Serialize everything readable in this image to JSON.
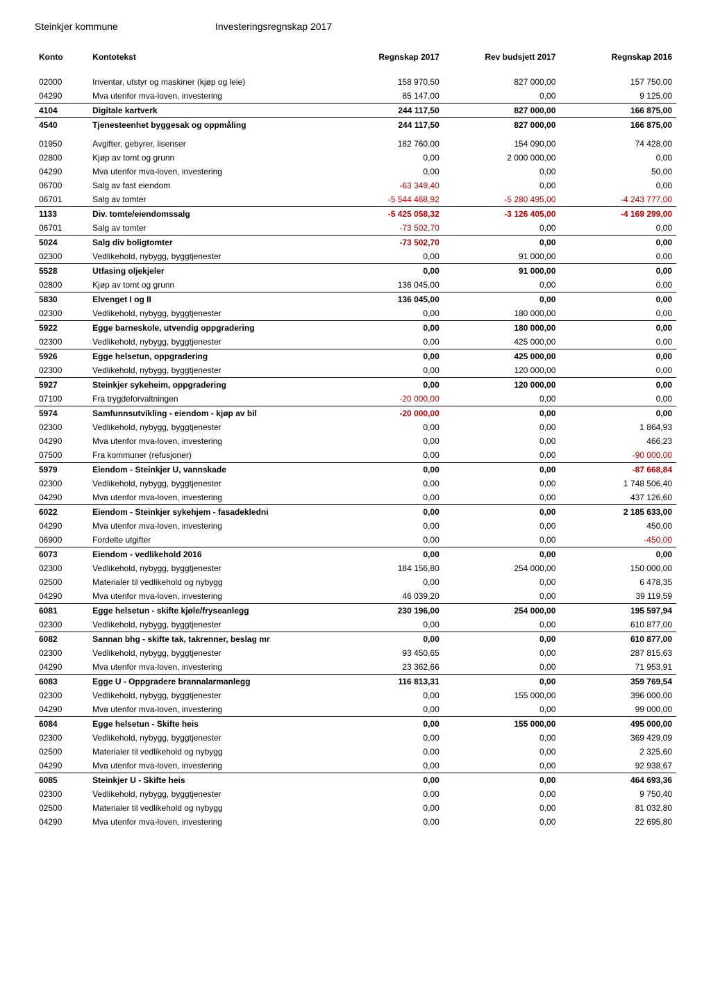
{
  "header": {
    "org": "Steinkjer kommune",
    "title": "Investeringsregnskap 2017"
  },
  "columns": {
    "konto": "Konto",
    "tekst": "Kontotekst",
    "c1": "Regnskap 2017",
    "c2": "Rev budsjett 2017",
    "c3": "Regnskap 2016"
  },
  "rows": [
    {
      "konto": "02000",
      "tekst": "Inventar, utstyr og maskiner (kjøp og leie)",
      "c1": "158 970,50",
      "c2": "827 000,00",
      "c3": "157 750,00",
      "spacer": true
    },
    {
      "konto": "04290",
      "tekst": "Mva utenfor mva-loven, investering",
      "c1": "85 147,00",
      "c2": "0,00",
      "c3": "9 125,00"
    },
    {
      "konto": "4104",
      "tekst": "Digitale kartverk",
      "c1": "244 117,50",
      "c2": "827 000,00",
      "c3": "166 875,00",
      "bold": true,
      "line": true
    },
    {
      "konto": "4540",
      "tekst": "Tjenesteenhet byggesak og oppmåling",
      "c1": "244 117,50",
      "c2": "827 000,00",
      "c3": "166 875,00",
      "bold": true,
      "line": true
    },
    {
      "konto": "01950",
      "tekst": "Avgifter, gebyrer, lisenser",
      "c1": "182 760,00",
      "c2": "154 090,00",
      "c3": "74 428,00",
      "spacer": true
    },
    {
      "konto": "02800",
      "tekst": "Kjøp av tomt og grunn",
      "c1": "0,00",
      "c2": "2 000 000,00",
      "c3": "0,00"
    },
    {
      "konto": "04290",
      "tekst": "Mva utenfor mva-loven, investering",
      "c1": "0,00",
      "c2": "0,00",
      "c3": "50,00"
    },
    {
      "konto": "06700",
      "tekst": "Salg av fast eiendom",
      "c1": "-63 349,40",
      "c2": "0,00",
      "c3": "0,00",
      "neg": [
        "c1"
      ]
    },
    {
      "konto": "06701",
      "tekst": "Salg av tomter",
      "c1": "-5 544 468,92",
      "c2": "-5 280 495,00",
      "c3": "-4 243 777,00",
      "neg": [
        "c1",
        "c2",
        "c3"
      ]
    },
    {
      "konto": "1133",
      "tekst": "Div. tomte/eiendomssalg",
      "c1": "-5 425 058,32",
      "c2": "-3 126 405,00",
      "c3": "-4 169 299,00",
      "bold": true,
      "line": true,
      "neg": [
        "c1",
        "c2",
        "c3"
      ]
    },
    {
      "konto": "06701",
      "tekst": "Salg av tomter",
      "c1": "-73 502,70",
      "c2": "0,00",
      "c3": "0,00",
      "neg": [
        "c1"
      ]
    },
    {
      "konto": "5024",
      "tekst": "Salg div boligtomter",
      "c1": "-73 502,70",
      "c2": "0,00",
      "c3": "0,00",
      "bold": true,
      "line": true,
      "neg": [
        "c1"
      ]
    },
    {
      "konto": "02300",
      "tekst": "Vedlikehold, nybygg, byggtjenester",
      "c1": "0,00",
      "c2": "91 000,00",
      "c3": "0,00"
    },
    {
      "konto": "5528",
      "tekst": "Utfasing oljekjeler",
      "c1": "0,00",
      "c2": "91 000,00",
      "c3": "0,00",
      "bold": true,
      "line": true
    },
    {
      "konto": "02800",
      "tekst": "Kjøp av tomt og grunn",
      "c1": "136 045,00",
      "c2": "0,00",
      "c3": "0,00"
    },
    {
      "konto": "5830",
      "tekst": "Elvenget I og II",
      "c1": "136 045,00",
      "c2": "0,00",
      "c3": "0,00",
      "bold": true,
      "line": true
    },
    {
      "konto": "02300",
      "tekst": "Vedlikehold, nybygg, byggtjenester",
      "c1": "0,00",
      "c2": "180 000,00",
      "c3": "0,00"
    },
    {
      "konto": "5922",
      "tekst": "Egge barneskole, utvendig oppgradering",
      "c1": "0,00",
      "c2": "180 000,00",
      "c3": "0,00",
      "bold": true,
      "line": true
    },
    {
      "konto": "02300",
      "tekst": "Vedlikehold, nybygg, byggtjenester",
      "c1": "0,00",
      "c2": "425 000,00",
      "c3": "0,00"
    },
    {
      "konto": "5926",
      "tekst": "Egge helsetun, oppgradering",
      "c1": "0,00",
      "c2": "425 000,00",
      "c3": "0,00",
      "bold": true,
      "line": true
    },
    {
      "konto": "02300",
      "tekst": "Vedlikehold, nybygg, byggtjenester",
      "c1": "0,00",
      "c2": "120 000,00",
      "c3": "0,00"
    },
    {
      "konto": "5927",
      "tekst": "Steinkjer sykeheim, oppgradering",
      "c1": "0,00",
      "c2": "120 000,00",
      "c3": "0,00",
      "bold": true,
      "line": true
    },
    {
      "konto": "07100",
      "tekst": "Fra trygdeforvaltningen",
      "c1": "-20 000,00",
      "c2": "0,00",
      "c3": "0,00",
      "neg": [
        "c1"
      ]
    },
    {
      "konto": "5974",
      "tekst": "Samfunnsutvikling - eiendom - kjøp av bil",
      "c1": "-20 000,00",
      "c2": "0,00",
      "c3": "0,00",
      "bold": true,
      "line": true,
      "neg": [
        "c1"
      ]
    },
    {
      "konto": "02300",
      "tekst": "Vedlikehold, nybygg, byggtjenester",
      "c1": "0,00",
      "c2": "0,00",
      "c3": "1 864,93"
    },
    {
      "konto": "04290",
      "tekst": "Mva utenfor mva-loven, investering",
      "c1": "0,00",
      "c2": "0,00",
      "c3": "466,23"
    },
    {
      "konto": "07500",
      "tekst": "Fra kommuner (refusjoner)",
      "c1": "0,00",
      "c2": "0,00",
      "c3": "-90 000,00",
      "neg": [
        "c3"
      ]
    },
    {
      "konto": "5979",
      "tekst": "Eiendom - Steinkjer U, vannskade",
      "c1": "0,00",
      "c2": "0,00",
      "c3": "-87 668,84",
      "bold": true,
      "line": true,
      "neg": [
        "c3"
      ]
    },
    {
      "konto": "02300",
      "tekst": "Vedlikehold, nybygg, byggtjenester",
      "c1": "0,00",
      "c2": "0,00",
      "c3": "1 748 506,40"
    },
    {
      "konto": "04290",
      "tekst": "Mva utenfor mva-loven, investering",
      "c1": "0,00",
      "c2": "0,00",
      "c3": "437 126,60"
    },
    {
      "konto": "6022",
      "tekst": "Eiendom - Steinkjer sykehjem - fasadekledni",
      "c1": "0,00",
      "c2": "0,00",
      "c3": "2 185 633,00",
      "bold": true,
      "line": true
    },
    {
      "konto": "04290",
      "tekst": "Mva utenfor mva-loven, investering",
      "c1": "0,00",
      "c2": "0,00",
      "c3": "450,00"
    },
    {
      "konto": "06900",
      "tekst": "Fordelte utgifter",
      "c1": "0,00",
      "c2": "0,00",
      "c3": "-450,00",
      "neg": [
        "c3"
      ]
    },
    {
      "konto": "6073",
      "tekst": "Eiendom - vedlikehold 2016",
      "c1": "0,00",
      "c2": "0,00",
      "c3": "0,00",
      "bold": true,
      "line": true
    },
    {
      "konto": "02300",
      "tekst": "Vedlikehold, nybygg, byggtjenester",
      "c1": "184 156,80",
      "c2": "254 000,00",
      "c3": "150 000,00"
    },
    {
      "konto": "02500",
      "tekst": "Materialer til vedlikehold og nybygg",
      "c1": "0,00",
      "c2": "0,00",
      "c3": "6 478,35"
    },
    {
      "konto": "04290",
      "tekst": "Mva utenfor mva-loven, investering",
      "c1": "46 039,20",
      "c2": "0,00",
      "c3": "39 119,59"
    },
    {
      "konto": "6081",
      "tekst": "Egge helsetun - skifte kjøle/fryseanlegg",
      "c1": "230 196,00",
      "c2": "254 000,00",
      "c3": "195 597,94",
      "bold": true,
      "line": true
    },
    {
      "konto": "02300",
      "tekst": "Vedlikehold, nybygg, byggtjenester",
      "c1": "0,00",
      "c2": "0,00",
      "c3": "610 877,00"
    },
    {
      "konto": "6082",
      "tekst": "Sannan bhg - skifte tak, takrenner, beslag mr",
      "c1": "0,00",
      "c2": "0,00",
      "c3": "610 877,00",
      "bold": true,
      "line": true
    },
    {
      "konto": "02300",
      "tekst": "Vedlikehold, nybygg, byggtjenester",
      "c1": "93 450,65",
      "c2": "0,00",
      "c3": "287 815,63"
    },
    {
      "konto": "04290",
      "tekst": "Mva utenfor mva-loven, investering",
      "c1": "23 362,66",
      "c2": "0,00",
      "c3": "71 953,91"
    },
    {
      "konto": "6083",
      "tekst": "Egge U - Oppgradere brannalarmanlegg",
      "c1": "116 813,31",
      "c2": "0,00",
      "c3": "359 769,54",
      "bold": true,
      "line": true
    },
    {
      "konto": "02300",
      "tekst": "Vedlikehold, nybygg, byggtjenester",
      "c1": "0,00",
      "c2": "155 000,00",
      "c3": "396 000,00"
    },
    {
      "konto": "04290",
      "tekst": "Mva utenfor mva-loven, investering",
      "c1": "0,00",
      "c2": "0,00",
      "c3": "99 000,00"
    },
    {
      "konto": "6084",
      "tekst": "Egge helsetun - Skifte heis",
      "c1": "0,00",
      "c2": "155 000,00",
      "c3": "495 000,00",
      "bold": true,
      "line": true
    },
    {
      "konto": "02300",
      "tekst": "Vedlikehold, nybygg, byggtjenester",
      "c1": "0,00",
      "c2": "0,00",
      "c3": "369 429,09"
    },
    {
      "konto": "02500",
      "tekst": "Materialer til vedlikehold og nybygg",
      "c1": "0,00",
      "c2": "0,00",
      "c3": "2 325,60"
    },
    {
      "konto": "04290",
      "tekst": "Mva utenfor mva-loven, investering",
      "c1": "0,00",
      "c2": "0,00",
      "c3": "92 938,67"
    },
    {
      "konto": "6085",
      "tekst": "Steinkjer U - Skifte heis",
      "c1": "0,00",
      "c2": "0,00",
      "c3": "464 693,36",
      "bold": true,
      "line": true
    },
    {
      "konto": "02300",
      "tekst": "Vedlikehold, nybygg, byggtjenester",
      "c1": "0,00",
      "c2": "0,00",
      "c3": "9 750,40"
    },
    {
      "konto": "02500",
      "tekst": "Materialer til vedlikehold og nybygg",
      "c1": "0,00",
      "c2": "0,00",
      "c3": "81 032,80"
    },
    {
      "konto": "04290",
      "tekst": "Mva utenfor mva-loven, investering",
      "c1": "0,00",
      "c2": "0,00",
      "c3": "22 695,80"
    }
  ]
}
